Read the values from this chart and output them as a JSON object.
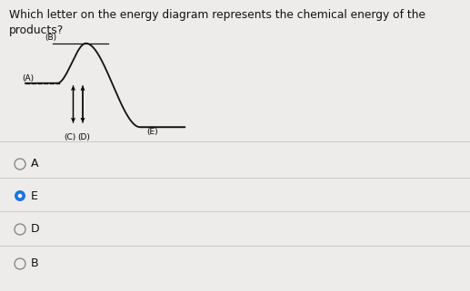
{
  "question_text_line1": "Which letter on the energy diagram represents the chemical energy of the",
  "question_text_line2": "products?",
  "background_color": "#edecea",
  "diagram": {
    "A_label": "(A)",
    "B_label": "(B)",
    "C_label": "(C)",
    "D_label": "(D)",
    "E_label": "(E)",
    "reactant_level": 0.52,
    "product_level": 0.08,
    "peak_level": 0.92,
    "curve_color": "#111111",
    "line_color": "#111111"
  },
  "choices": [
    {
      "label": "A",
      "selected": false
    },
    {
      "label": "E",
      "selected": true
    },
    {
      "label": "D",
      "selected": false
    },
    {
      "label": "B",
      "selected": false
    }
  ],
  "radio_color_selected": "#1a73e8",
  "radio_border_color": "#888888",
  "text_color": "#111111",
  "divider_color": "#cccccc",
  "font_size_question": 8.8,
  "font_size_choices": 9.0,
  "font_size_diagram_labels": 6.5
}
